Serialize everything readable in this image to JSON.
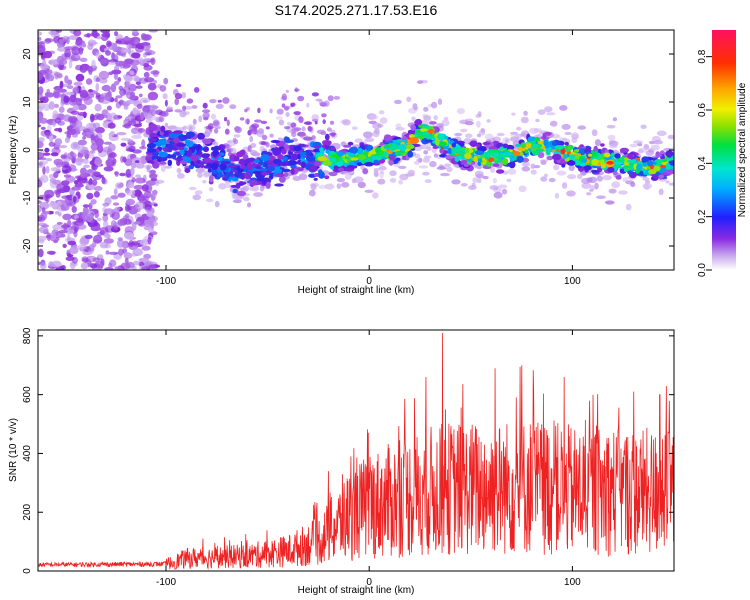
{
  "title": "S174.2025.271.17.53.E16",
  "chart_data": [
    {
      "type": "heatmap",
      "xlabel": "Height of straight line (km)",
      "ylabel": "Frequency (Hz)",
      "xlim": [
        -163,
        150
      ],
      "ylim": [
        -25,
        25
      ],
      "xticks": [
        -100,
        0,
        100
      ],
      "yticks": [
        -20,
        -10,
        0,
        10,
        20
      ],
      "colorbar": {
        "label": "Normalized spectral amplitude",
        "range": [
          0,
          0.9
        ],
        "ticks": [
          "0.0",
          "0.2",
          "0.4",
          "0.6",
          "0.8"
        ],
        "colormap": "rainbow"
      },
      "centerline": [
        [
          -107,
          1.5
        ],
        [
          -90,
          0.0
        ],
        [
          -75,
          -2.5
        ],
        [
          -65,
          -5.0
        ],
        [
          -50,
          -4.0
        ],
        [
          -40,
          -1.5
        ],
        [
          -30,
          -1.0
        ],
        [
          -20,
          -2.0
        ],
        [
          -10,
          -2.0
        ],
        [
          0,
          -1.0
        ],
        [
          10,
          0.0
        ],
        [
          20,
          1.0
        ],
        [
          25,
          4.0
        ],
        [
          30,
          3.5
        ],
        [
          35,
          2.0
        ],
        [
          45,
          -1.0
        ],
        [
          60,
          -1.5
        ],
        [
          70,
          -1.0
        ],
        [
          80,
          1.0
        ],
        [
          90,
          0.5
        ],
        [
          100,
          -1.0
        ],
        [
          110,
          -2.0
        ],
        [
          120,
          -2.5
        ],
        [
          130,
          -3.0
        ],
        [
          140,
          -3.5
        ],
        [
          150,
          -3.0
        ]
      ],
      "noise_region": {
        "x": [
          -163,
          -105
        ],
        "y": [
          -25,
          25
        ]
      }
    },
    {
      "type": "line",
      "xlabel": "Height of straight line (km)",
      "ylabel": "SNR (10 * v/v)",
      "xlim": [
        -163,
        150
      ],
      "ylim": [
        0,
        820
      ],
      "xticks": [
        -100,
        0,
        100
      ],
      "yticks": [
        0,
        200,
        400,
        600,
        800
      ],
      "color": "#ee2222",
      "envelope": [
        [
          -163,
          25
        ],
        [
          -100,
          28
        ],
        [
          -90,
          50
        ],
        [
          -60,
          60
        ],
        [
          -40,
          80
        ],
        [
          -25,
          120
        ],
        [
          -10,
          220
        ],
        [
          0,
          260
        ],
        [
          10,
          280
        ],
        [
          20,
          300
        ],
        [
          30,
          320
        ],
        [
          40,
          330
        ],
        [
          60,
          330
        ],
        [
          80,
          340
        ],
        [
          100,
          320
        ],
        [
          120,
          320
        ],
        [
          150,
          310
        ]
      ],
      "peaks": [
        [
          36,
          810
        ],
        [
          62,
          690
        ],
        [
          75,
          700
        ],
        [
          96,
          660
        ],
        [
          143,
          600
        ],
        [
          -20,
          340
        ],
        [
          -9,
          390
        ]
      ]
    }
  ]
}
